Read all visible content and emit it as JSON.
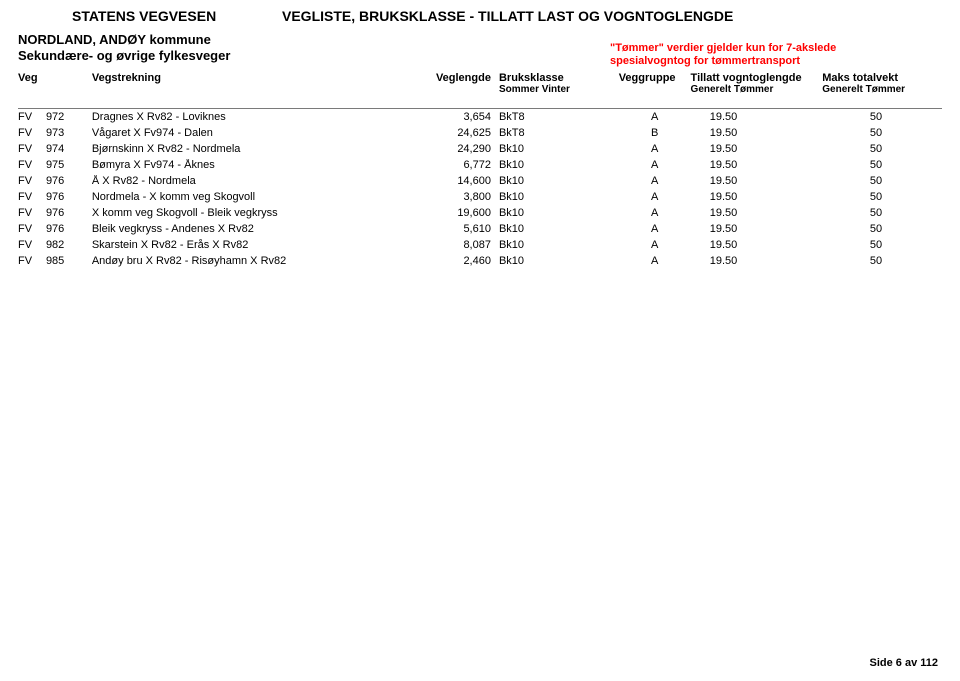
{
  "header": {
    "agency": "STATENS VEGVESEN",
    "document_title": "VEGLISTE, BRUKSKLASSE - TILLATT LAST OG VOGNTOGLENGDE",
    "region_line1": "NORDLAND, ANDØY kommune",
    "region_line2": "Sekundære- og øvrige fylkesveger",
    "note_line1": "\"Tømmer\" verdier gjelder kun for 7-akslede",
    "note_line2": "spesialvogntog for tømmertransport"
  },
  "columns": {
    "veg": "Veg",
    "vegstrekning": "Vegstrekning",
    "veglengde": "Veglengde",
    "bruksklasse": "Bruksklasse",
    "bruksklasse_sub": "Sommer   Vinter",
    "veggruppe": "Veggruppe",
    "tillatt": "Tillatt vogntoglengde",
    "tillatt_sub": "Generelt      Tømmer",
    "maks": "Maks totalvekt",
    "maks_sub": "Generelt Tømmer"
  },
  "rows": [
    {
      "kat": "FV",
      "nr": "972",
      "strek": "Dragnes X Rv82 - Loviknes",
      "len": "3,654",
      "bk": "BkT8",
      "grp": "A",
      "tg": "19.50",
      "mg": "50"
    },
    {
      "kat": "FV",
      "nr": "973",
      "strek": "Vågaret X Fv974 - Dalen",
      "len": "24,625",
      "bk": "BkT8",
      "grp": "B",
      "tg": "19.50",
      "mg": "50"
    },
    {
      "kat": "FV",
      "nr": "974",
      "strek": "Bjørnskinn X Rv82 - Nordmela",
      "len": "24,290",
      "bk": "Bk10",
      "grp": "A",
      "tg": "19.50",
      "mg": "50"
    },
    {
      "kat": "FV",
      "nr": "975",
      "strek": "Bømyra X Fv974 - Åknes",
      "len": "6,772",
      "bk": "Bk10",
      "grp": "A",
      "tg": "19.50",
      "mg": "50"
    },
    {
      "kat": "FV",
      "nr": "976",
      "strek": "Å X Rv82 - Nordmela",
      "len": "14,600",
      "bk": "Bk10",
      "grp": "A",
      "tg": "19.50",
      "mg": "50"
    },
    {
      "kat": "FV",
      "nr": "976",
      "strek": "Nordmela - X komm veg Skogvoll",
      "len": "3,800",
      "bk": "Bk10",
      "grp": "A",
      "tg": "19.50",
      "mg": "50"
    },
    {
      "kat": "FV",
      "nr": "976",
      "strek": "X komm veg Skogvoll - Bleik vegkryss",
      "len": "19,600",
      "bk": "Bk10",
      "grp": "A",
      "tg": "19.50",
      "mg": "50"
    },
    {
      "kat": "FV",
      "nr": "976",
      "strek": "Bleik vegkryss - Andenes X Rv82",
      "len": "5,610",
      "bk": "Bk10",
      "grp": "A",
      "tg": "19.50",
      "mg": "50"
    },
    {
      "kat": "FV",
      "nr": "982",
      "strek": "Skarstein X Rv82 - Erås X Rv82",
      "len": "8,087",
      "bk": "Bk10",
      "grp": "A",
      "tg": "19.50",
      "mg": "50"
    },
    {
      "kat": "FV",
      "nr": "985",
      "strek": "Andøy bru X Rv82 - Risøyhamn X Rv82",
      "len": "2,460",
      "bk": "Bk10",
      "grp": "A",
      "tg": "19.50",
      "mg": "50"
    }
  ],
  "footer": {
    "page": "Side 6 av 112"
  },
  "style": {
    "note_color": "#ff0000",
    "border_color": "#7a7a7a",
    "background": "#ffffff",
    "text_color": "#000000"
  }
}
